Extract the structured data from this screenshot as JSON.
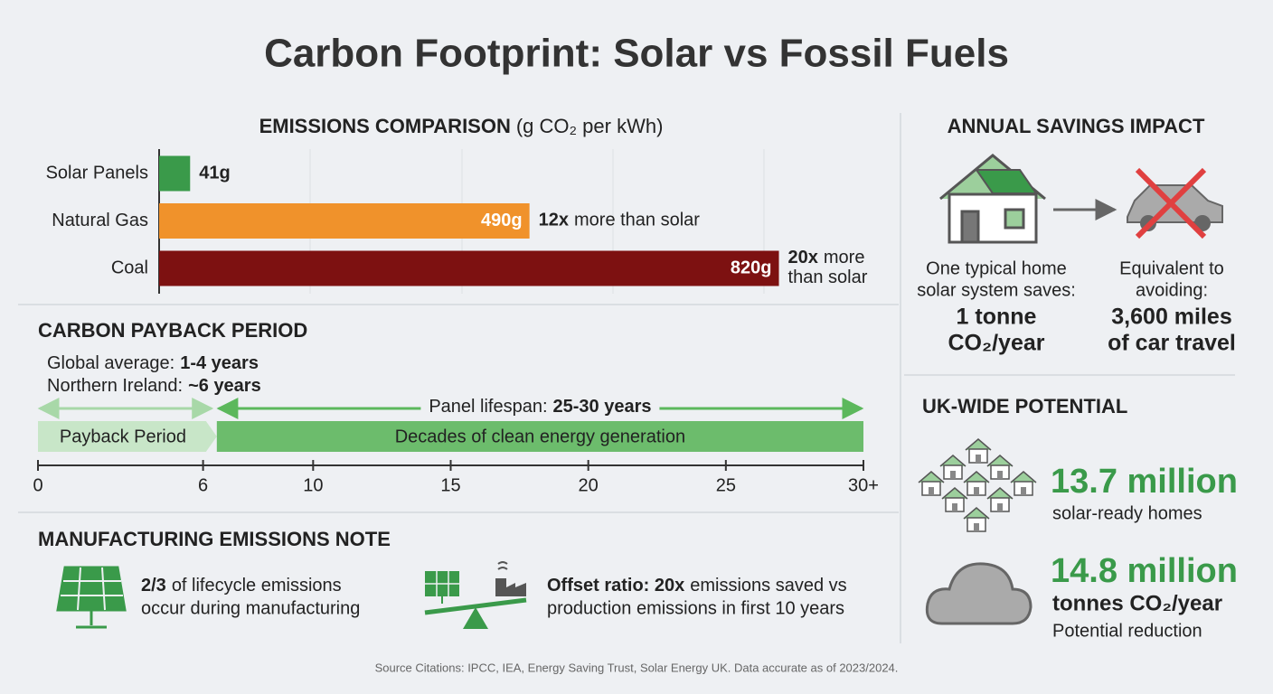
{
  "title": "Carbon Footprint: Solar vs Fossil Fuels",
  "chart_data": [
    {
      "type": "bar",
      "title": "EMISSIONS COMPARISON",
      "subtitle": "(g CO₂ per kWh)",
      "categories": [
        "Solar Panels",
        "Natural Gas",
        "Coal"
      ],
      "values": [
        41,
        490,
        820
      ],
      "value_labels": [
        "41g",
        "490g",
        "820g"
      ],
      "colors": [
        "#3a9a4a",
        "#f0922b",
        "#7d1111"
      ],
      "xlim": [
        0,
        1000
      ],
      "annotations": [
        null,
        {
          "bold": "12x",
          "lines": [
            "more than solar"
          ]
        },
        {
          "bold": "20x",
          "lines": [
            "more",
            "than solar"
          ]
        }
      ]
    },
    {
      "type": "timeline",
      "title": "CARBON PAYBACK PERIOD",
      "notes": [
        {
          "label": "Global average:",
          "value": "1-4 years"
        },
        {
          "label": "Northern Ireland:",
          "value": "~6 years"
        }
      ],
      "span": {
        "label": "Panel lifespan:",
        "value": "25-30 years",
        "start": 6.5,
        "end": 30
      },
      "segments": [
        {
          "name": "Payback Period",
          "start": 0,
          "end": 6.5,
          "color": "#c8e6c8"
        },
        {
          "name": "Decades of clean energy generation",
          "start": 6.5,
          "end": 30,
          "color": "#6cbc6c"
        }
      ],
      "xlim": [
        0,
        30
      ],
      "xticks": [
        0,
        6,
        10,
        15,
        20,
        25,
        {
          "value": 30,
          "label": "30+"
        }
      ]
    }
  ],
  "manufacturing": {
    "title": "MANUFACTURING EMISSIONS NOTE",
    "items": [
      {
        "bold": "2/3",
        "lines": [
          "of lifecycle emissions",
          "occur during manufacturing"
        ]
      },
      {
        "bold": "Offset ratio: 20x",
        "lines": [
          "emissions saved vs",
          "production emissions in first 10 years"
        ]
      }
    ]
  },
  "annual_savings": {
    "title": "ANNUAL SAVINGS IMPACT",
    "home": {
      "lines": [
        "One typical home",
        "solar system saves:"
      ],
      "amount": "1 tonne",
      "unit": "CO₂/year"
    },
    "car": {
      "lines": [
        "Equivalent to",
        "avoiding:"
      ],
      "amount": "3,600 miles",
      "unit": "of car travel"
    }
  },
  "uk_potential": {
    "title": "UK-WIDE POTENTIAL",
    "homes": {
      "value": "13.7 million",
      "label": "solar-ready homes"
    },
    "reduction": {
      "value": "14.8 million",
      "unit": "tonnes CO₂/year",
      "label": "Potential reduction"
    }
  },
  "source": "Source Citations: IPCC, IEA, Energy Saving Trust, Solar Energy UK. Data accurate as of 2023/2024."
}
